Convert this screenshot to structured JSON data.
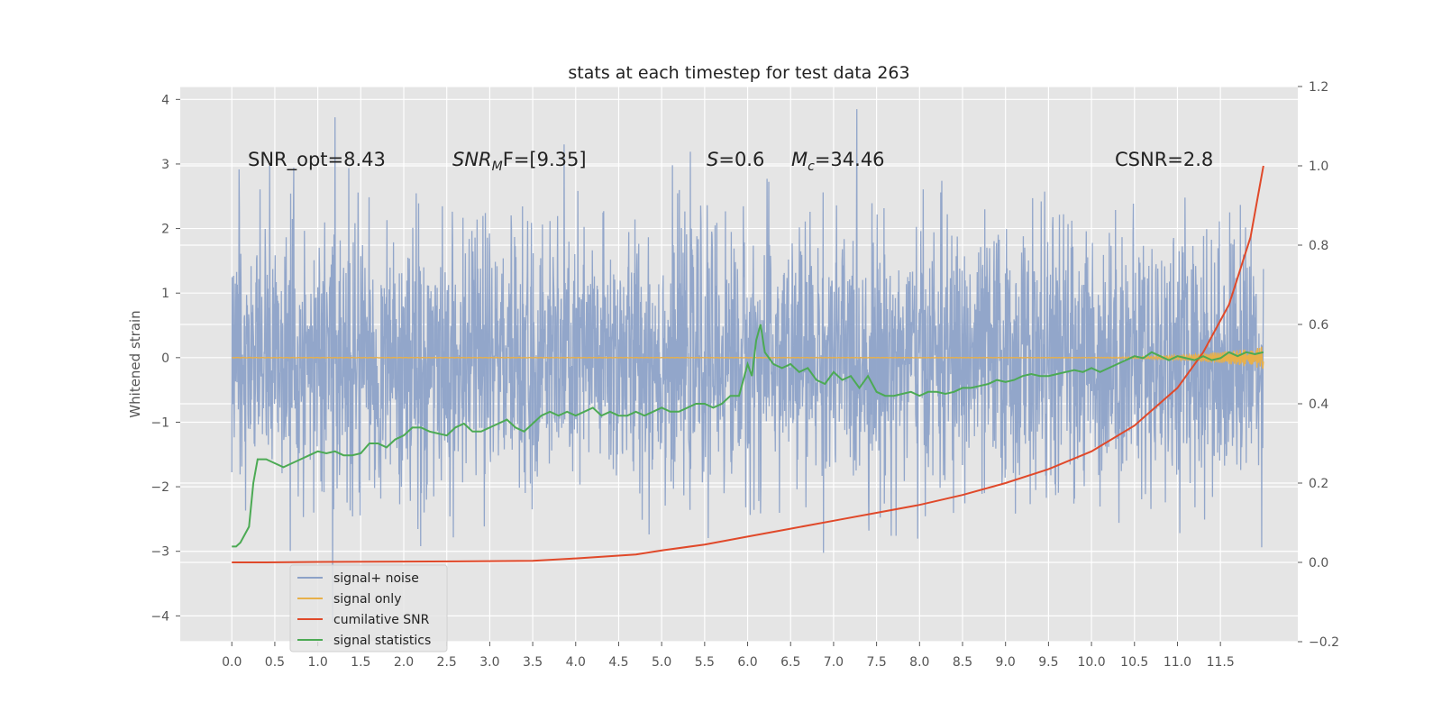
{
  "chart_data": {
    "type": "line",
    "title": "stats at each timestep for test data 263",
    "ylabel": "Whitened strain",
    "xlabel": "",
    "xlim": [
      -0.6,
      12.4
    ],
    "ylim": [
      -4.4,
      4.2
    ],
    "y2lim": [
      -0.2,
      1.2
    ],
    "x_ticks": [
      "0.0",
      "0.5",
      "1.0",
      "1.5",
      "2.0",
      "2.5",
      "3.0",
      "3.5",
      "4.0",
      "4.5",
      "5.0",
      "5.5",
      "6.0",
      "6.5",
      "7.0",
      "7.5",
      "8.0",
      "8.5",
      "9.0",
      "9.5",
      "10.0",
      "10.5",
      "11.0",
      "11.5"
    ],
    "y_ticks": [
      "4",
      "3",
      "2",
      "1",
      "0",
      "−1",
      "−2",
      "−3",
      "−4"
    ],
    "y2_ticks": [
      "1.2",
      "1.0",
      "0.8",
      "0.6",
      "0.4",
      "0.2",
      "0.0",
      "−0.2"
    ],
    "grid": true,
    "legend_position": "lower-left",
    "annotations": [
      {
        "id": "snr-opt",
        "text": "SNR_opt=8.43"
      },
      {
        "id": "snr-mf",
        "main": "SNR",
        "sub": "M",
        "rest": "F=[9.35]"
      },
      {
        "id": "s-val",
        "main": "S",
        "rest": "=0.6"
      },
      {
        "id": "mc-val",
        "main": "M",
        "sub": "c",
        "rest": "=34.46"
      },
      {
        "id": "csnr",
        "text": "CSNR=2.8"
      }
    ],
    "series": [
      {
        "name": "signal+ noise",
        "color": "#8da2c8",
        "axis": "left",
        "kind": "noise",
        "x_range": [
          0,
          12.0
        ],
        "amplitude_range": [
          -4.1,
          3.85
        ]
      },
      {
        "name": "signal only",
        "color": "#e8b04a",
        "axis": "left",
        "kind": "chirp",
        "x_range": [
          0,
          12.0
        ]
      },
      {
        "name": "cumilative SNR",
        "color": "#e0492a",
        "axis": "right",
        "x": [
          0,
          0.4,
          1.0,
          2.0,
          3.0,
          3.5,
          4.0,
          4.7,
          5.0,
          5.5,
          6.0,
          6.5,
          7.0,
          7.5,
          8.0,
          8.5,
          9.0,
          9.5,
          10.0,
          10.5,
          11.0,
          11.3,
          11.6,
          11.85,
          12.0
        ],
        "values": [
          0.0,
          0.0,
          0.001,
          0.002,
          0.003,
          0.004,
          0.01,
          0.02,
          0.03,
          0.045,
          0.065,
          0.085,
          0.105,
          0.125,
          0.145,
          0.17,
          0.2,
          0.235,
          0.28,
          0.345,
          0.44,
          0.53,
          0.65,
          0.82,
          1.0
        ]
      },
      {
        "name": "signal statistics",
        "color": "#4caa54",
        "axis": "right",
        "x": [
          0,
          0.05,
          0.1,
          0.2,
          0.25,
          0.3,
          0.4,
          0.5,
          0.6,
          0.7,
          0.8,
          0.9,
          1.0,
          1.1,
          1.2,
          1.3,
          1.4,
          1.5,
          1.6,
          1.7,
          1.8,
          1.9,
          2.0,
          2.1,
          2.2,
          2.3,
          2.4,
          2.5,
          2.6,
          2.7,
          2.8,
          2.9,
          3.0,
          3.1,
          3.2,
          3.3,
          3.4,
          3.5,
          3.6,
          3.7,
          3.8,
          3.9,
          4.0,
          4.1,
          4.2,
          4.3,
          4.4,
          4.5,
          4.6,
          4.7,
          4.8,
          4.9,
          5.0,
          5.1,
          5.2,
          5.3,
          5.4,
          5.5,
          5.6,
          5.7,
          5.8,
          5.9,
          6.0,
          6.05,
          6.1,
          6.15,
          6.2,
          6.3,
          6.4,
          6.5,
          6.6,
          6.7,
          6.8,
          6.9,
          7.0,
          7.1,
          7.2,
          7.3,
          7.4,
          7.5,
          7.6,
          7.7,
          7.8,
          7.9,
          8.0,
          8.1,
          8.2,
          8.3,
          8.4,
          8.5,
          8.6,
          8.7,
          8.8,
          8.9,
          9.0,
          9.1,
          9.2,
          9.3,
          9.4,
          9.5,
          9.6,
          9.7,
          9.8,
          9.9,
          10.0,
          10.1,
          10.2,
          10.3,
          10.4,
          10.5,
          10.6,
          10.7,
          10.8,
          10.9,
          11.0,
          11.1,
          11.2,
          11.3,
          11.4,
          11.5,
          11.6,
          11.7,
          11.8,
          11.9,
          12.0
        ],
        "values": [
          0.04,
          0.04,
          0.05,
          0.09,
          0.2,
          0.26,
          0.26,
          0.25,
          0.24,
          0.25,
          0.26,
          0.27,
          0.28,
          0.275,
          0.28,
          0.27,
          0.27,
          0.275,
          0.3,
          0.3,
          0.29,
          0.31,
          0.32,
          0.34,
          0.34,
          0.33,
          0.325,
          0.32,
          0.34,
          0.35,
          0.33,
          0.33,
          0.34,
          0.35,
          0.36,
          0.34,
          0.33,
          0.35,
          0.37,
          0.38,
          0.37,
          0.38,
          0.37,
          0.38,
          0.39,
          0.37,
          0.38,
          0.37,
          0.37,
          0.38,
          0.37,
          0.38,
          0.39,
          0.38,
          0.38,
          0.39,
          0.4,
          0.4,
          0.39,
          0.4,
          0.42,
          0.42,
          0.5,
          0.47,
          0.56,
          0.6,
          0.53,
          0.5,
          0.49,
          0.5,
          0.48,
          0.49,
          0.46,
          0.45,
          0.48,
          0.46,
          0.47,
          0.44,
          0.47,
          0.43,
          0.42,
          0.42,
          0.425,
          0.43,
          0.42,
          0.43,
          0.43,
          0.425,
          0.43,
          0.44,
          0.44,
          0.445,
          0.45,
          0.46,
          0.455,
          0.46,
          0.47,
          0.475,
          0.47,
          0.47,
          0.475,
          0.48,
          0.485,
          0.48,
          0.49,
          0.48,
          0.49,
          0.5,
          0.51,
          0.52,
          0.515,
          0.53,
          0.52,
          0.51,
          0.52,
          0.515,
          0.51,
          0.52,
          0.51,
          0.515,
          0.53,
          0.52,
          0.53,
          0.525,
          0.53
        ]
      }
    ]
  }
}
